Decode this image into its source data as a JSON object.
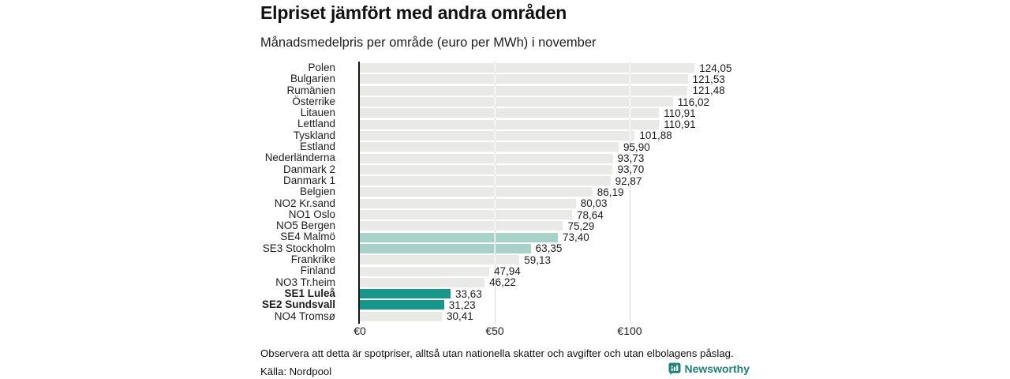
{
  "header": {
    "title": "Elpriset jämfört med andra områden",
    "subtitle": "Månadsmedelpris per område (euro per MWh) i november"
  },
  "chart_data": {
    "type": "bar",
    "orientation": "horizontal",
    "title": "Elpriset jämfört med andra områden",
    "subtitle": "Månadsmedelpris per område (euro per MWh) i november",
    "unit": "euro per MWh",
    "xlim": [
      0,
      145
    ],
    "grid": "vertical",
    "x_ticks": [
      {
        "label": "€0",
        "value": 0
      },
      {
        "label": "€50",
        "value": 50
      },
      {
        "label": "€100",
        "value": 100
      }
    ],
    "bars": [
      {
        "label": "Polen",
        "value": 124.05,
        "display": "124,05",
        "style": "default",
        "bold": false
      },
      {
        "label": "Bulgarien",
        "value": 121.53,
        "display": "121,53",
        "style": "default",
        "bold": false
      },
      {
        "label": "Rumänien",
        "value": 121.48,
        "display": "121,48",
        "style": "default",
        "bold": false
      },
      {
        "label": "Österrike",
        "value": 116.02,
        "display": "116,02",
        "style": "default",
        "bold": false
      },
      {
        "label": "Litauen",
        "value": 110.91,
        "display": "110,91",
        "style": "default",
        "bold": false
      },
      {
        "label": "Lettland",
        "value": 110.91,
        "display": "110,91",
        "style": "default",
        "bold": false
      },
      {
        "label": "Tyskland",
        "value": 101.88,
        "display": "101,88",
        "style": "default",
        "bold": false
      },
      {
        "label": "Estland",
        "value": 95.9,
        "display": "95,90",
        "style": "default",
        "bold": false
      },
      {
        "label": "Nederländerna",
        "value": 93.73,
        "display": "93,73",
        "style": "default",
        "bold": false
      },
      {
        "label": "Danmark 2",
        "value": 93.7,
        "display": "93,70",
        "style": "default",
        "bold": false
      },
      {
        "label": "Danmark 1",
        "value": 92.87,
        "display": "92,87",
        "style": "default",
        "bold": false
      },
      {
        "label": "Belgien",
        "value": 86.19,
        "display": "86,19",
        "style": "default",
        "bold": false
      },
      {
        "label": "NO2 Kr.sand",
        "value": 80.03,
        "display": "80,03",
        "style": "default",
        "bold": false
      },
      {
        "label": "NO1 Oslo",
        "value": 78.64,
        "display": "78,64",
        "style": "default",
        "bold": false
      },
      {
        "label": "NO5 Bergen",
        "value": 75.29,
        "display": "75,29",
        "style": "default",
        "bold": false
      },
      {
        "label": "SE4 Malmö",
        "value": 73.4,
        "display": "73,40",
        "style": "light",
        "bold": false
      },
      {
        "label": "SE3 Stockholm",
        "value": 63.35,
        "display": "63,35",
        "style": "light",
        "bold": false
      },
      {
        "label": "Frankrike",
        "value": 59.13,
        "display": "59,13",
        "style": "default",
        "bold": false
      },
      {
        "label": "Finland",
        "value": 47.94,
        "display": "47,94",
        "style": "default",
        "bold": false
      },
      {
        "label": "NO3 Tr.heim",
        "value": 46.22,
        "display": "46,22",
        "style": "default",
        "bold": false
      },
      {
        "label": "SE1 Luleå",
        "value": 33.63,
        "display": "33,63",
        "style": "highlight",
        "bold": true
      },
      {
        "label": "SE2 Sundsvall",
        "value": 31.23,
        "display": "31,23",
        "style": "highlight",
        "bold": true
      },
      {
        "label": "NO4 Tromsø",
        "value": 30.41,
        "display": "30,41",
        "style": "default",
        "bold": false
      }
    ],
    "bar_colors": {
      "default": "#e9e9e7",
      "light": "#a7d1c9",
      "highlight": "#17978b"
    }
  },
  "footer": {
    "note": "Observera att detta är spotpriser, alltså utan nationella skatter och avgifter och utan elbolagens påslag.",
    "source": "Källa: Nordpool",
    "brand": "Newsworthy"
  },
  "colors": {
    "axis": "#151515",
    "grid": "#d9d9d9",
    "text": "#1d1d1d",
    "brand_teal": "#1e8278"
  }
}
